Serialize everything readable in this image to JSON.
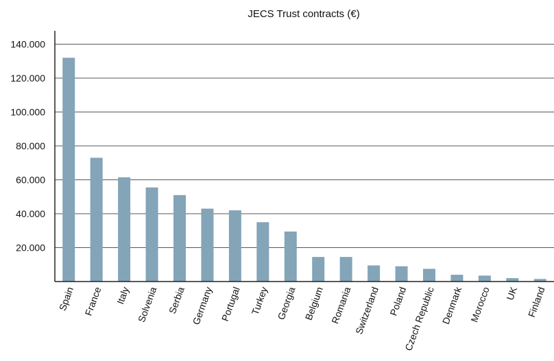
{
  "chart_data": {
    "type": "bar",
    "title": "JECS Trust contracts (€)",
    "xlabel": "",
    "ylabel": "",
    "categories": [
      "Spain",
      "France",
      "Italy",
      "Solvenia",
      "Serbia",
      "Germany",
      "Portugal",
      "Turkey",
      "Georgia",
      "Belgium",
      "Romania",
      "Switzerland",
      "Poland",
      "Czech Republic",
      "Denmark",
      "Morocco",
      "UK",
      "Finland"
    ],
    "values": [
      132000,
      73000,
      61500,
      55500,
      51000,
      43000,
      42000,
      35000,
      29500,
      14500,
      14500,
      9500,
      9000,
      7500,
      4000,
      3500,
      2000,
      1500
    ],
    "ylim": [
      0,
      150000
    ],
    "yticks": [
      20000,
      40000,
      60000,
      80000,
      100000,
      120000,
      140000
    ],
    "ytick_labels": [
      "20.000",
      "40.000",
      "60.000",
      "80.000",
      "100.000",
      "120.000",
      "140.000"
    ],
    "grid": true,
    "bar_color": "#84a4b8",
    "grid_color": "#555555"
  }
}
